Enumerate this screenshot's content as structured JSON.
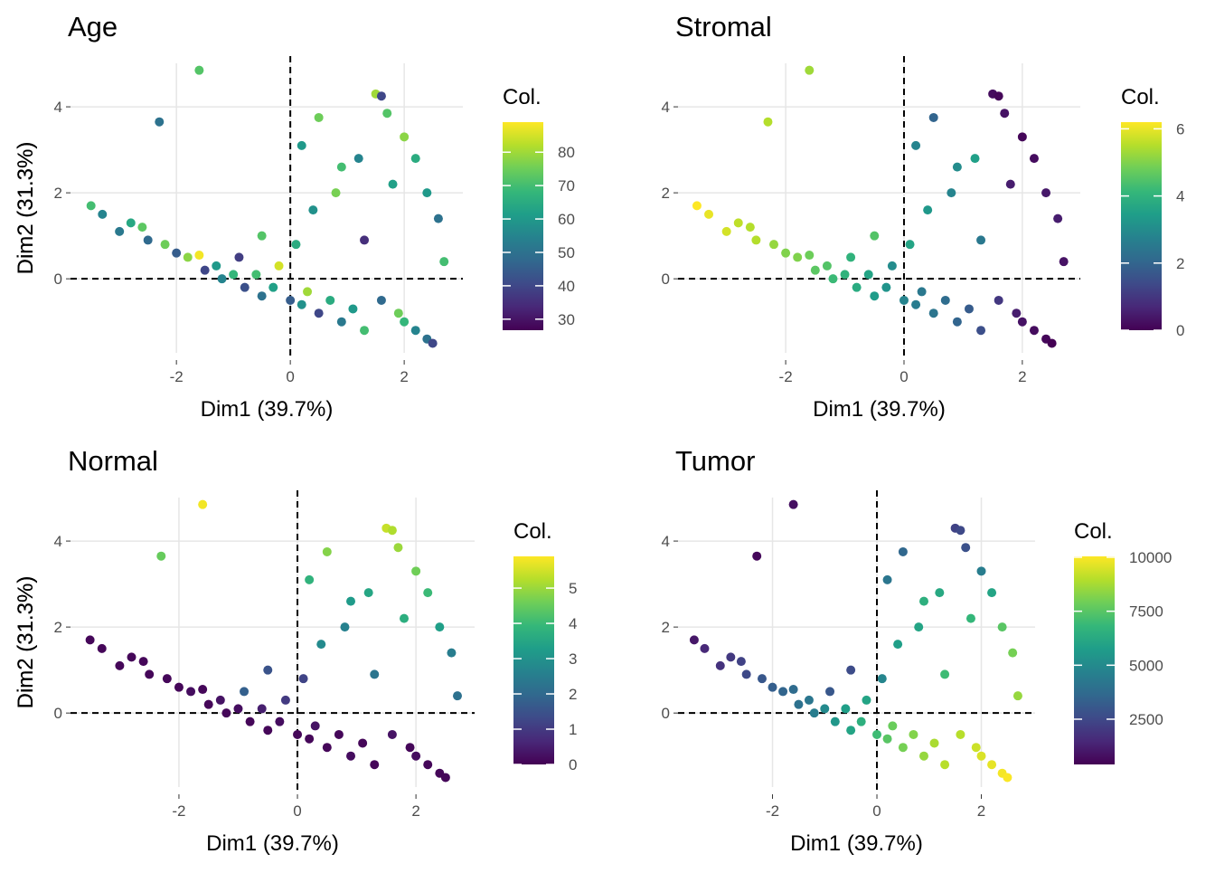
{
  "chart_data": [
    {
      "type": "scatter",
      "title": "Age",
      "x_label": "Dim1 (39.7%)",
      "y_label": "Dim2 (31.3%)",
      "color_label": "Col.",
      "colormap": "viridis",
      "ref_lines": {
        "x": 0,
        "y": 0
      },
      "xlim": [
        -3.86,
        3.03
      ],
      "ylim": [
        -1.89,
        5.18
      ],
      "xticks": [
        -2,
        0,
        2
      ],
      "yticks": [
        0,
        2,
        4
      ],
      "clim": [
        26.7,
        89
      ],
      "cticks": [
        30,
        40,
        50,
        60,
        70,
        80
      ],
      "x": [
        -1.6,
        -2.3,
        -3.5,
        -3.3,
        -3.0,
        -2.8,
        -2.6,
        -2.5,
        -2.2,
        -2.0,
        -1.8,
        -1.6,
        -1.5,
        -1.3,
        -1.2,
        -1.0,
        -0.8,
        -0.6,
        -0.5,
        -0.3,
        -0.2,
        0.0,
        0.2,
        0.3,
        0.5,
        0.7,
        0.9,
        1.1,
        1.3,
        1.6,
        1.9,
        2.0,
        2.2,
        2.4,
        2.5,
        -0.5,
        0.2,
        0.5,
        0.9,
        1.2,
        1.5,
        1.6,
        1.7,
        2.0,
        2.2,
        2.4,
        2.6,
        2.7,
        0.4,
        1.3,
        0.1,
        1.8,
        -0.9,
        0.8
      ],
      "y": [
        4.85,
        3.65,
        1.7,
        1.5,
        1.1,
        1.3,
        1.2,
        0.9,
        0.8,
        0.6,
        0.5,
        0.55,
        0.2,
        0.3,
        0.0,
        0.1,
        -0.2,
        0.1,
        -0.4,
        -0.2,
        0.3,
        -0.5,
        -0.6,
        -0.3,
        -0.8,
        -0.5,
        -1.0,
        -0.7,
        -1.2,
        -0.5,
        -0.8,
        -1.0,
        -1.2,
        -1.4,
        -1.5,
        1.0,
        3.1,
        3.75,
        2.6,
        2.8,
        4.3,
        4.25,
        3.85,
        3.3,
        2.8,
        2.0,
        1.4,
        0.4,
        1.6,
        0.9,
        0.8,
        2.2,
        0.5,
        2.0
      ],
      "color_values": [
        72,
        50,
        70,
        55,
        52,
        64,
        73,
        48,
        75,
        45,
        78,
        88,
        40,
        60,
        55,
        68,
        42,
        70,
        50,
        62,
        85,
        45,
        58,
        80,
        40,
        65,
        52,
        60,
        70,
        48,
        75,
        68,
        55,
        50,
        40,
        72,
        60,
        75,
        70,
        55,
        80,
        40,
        72,
        78,
        65,
        60,
        50,
        70,
        58,
        35,
        65,
        62,
        38,
        76
      ]
    },
    {
      "type": "scatter",
      "title": "Stromal",
      "x_label": "Dim1 (39.7%)",
      "y_label": "Dim2 (31.3%)",
      "color_label": "Col.",
      "colormap": "viridis",
      "ref_lines": {
        "x": 0,
        "y": 0
      },
      "xlim": [
        -3.82,
        2.98
      ],
      "ylim": [
        -1.89,
        5.18
      ],
      "xticks": [
        -2,
        0,
        2
      ],
      "yticks": [
        0,
        2,
        4
      ],
      "clim": [
        0,
        6.2
      ],
      "cticks": [
        0,
        2,
        4,
        6
      ],
      "x": [
        -1.6,
        -2.3,
        -3.5,
        -3.3,
        -3.0,
        -2.8,
        -2.6,
        -2.5,
        -2.2,
        -2.0,
        -1.8,
        -1.6,
        -1.5,
        -1.3,
        -1.2,
        -1.0,
        -0.8,
        -0.6,
        -0.5,
        -0.3,
        -0.2,
        0.0,
        0.2,
        0.3,
        0.5,
        0.7,
        0.9,
        1.1,
        1.3,
        1.6,
        1.9,
        2.0,
        2.2,
        2.4,
        2.5,
        -0.5,
        0.2,
        0.5,
        0.9,
        1.2,
        1.5,
        1.6,
        1.7,
        2.0,
        2.2,
        2.4,
        2.6,
        2.7,
        0.4,
        1.3,
        0.1,
        1.8,
        -0.9,
        0.8
      ],
      "y": [
        4.85,
        3.65,
        1.7,
        1.5,
        1.1,
        1.3,
        1.2,
        0.9,
        0.8,
        0.6,
        0.5,
        0.55,
        0.2,
        0.3,
        0.0,
        0.1,
        -0.2,
        0.1,
        -0.4,
        -0.2,
        0.3,
        -0.5,
        -0.6,
        -0.3,
        -0.8,
        -0.5,
        -1.0,
        -0.7,
        -1.2,
        -0.5,
        -0.8,
        -1.0,
        -1.2,
        -1.4,
        -1.5,
        1.0,
        3.1,
        3.75,
        2.6,
        2.8,
        4.3,
        4.25,
        3.85,
        3.3,
        2.8,
        2.0,
        1.4,
        0.4,
        1.6,
        0.9,
        0.8,
        2.2,
        0.5,
        2.0
      ],
      "color_values": [
        5.3,
        5.5,
        6.2,
        6.0,
        5.8,
        5.6,
        5.5,
        5.5,
        5.2,
        5.0,
        5.0,
        4.8,
        4.6,
        4.5,
        4.2,
        4.0,
        3.8,
        3.6,
        3.4,
        3.2,
        3.0,
        2.8,
        2.6,
        2.5,
        2.4,
        2.2,
        2.0,
        1.8,
        1.5,
        1.0,
        0.5,
        0.3,
        0.2,
        0.1,
        0.0,
        4.5,
        2.8,
        2.0,
        3.0,
        3.5,
        0.2,
        0.1,
        0.3,
        0.1,
        0.2,
        0.4,
        0.5,
        0.3,
        3.3,
        2.5,
        3.6,
        0.5,
        4.0,
        2.8
      ]
    },
    {
      "type": "scatter",
      "title": "Normal",
      "x_label": "Dim1 (39.7%)",
      "y_label": "Dim2 (31.3%)",
      "color_label": "Col.",
      "colormap": "viridis",
      "ref_lines": {
        "x": 0,
        "y": 0
      },
      "xlim": [
        -3.83,
        2.99
      ],
      "ylim": [
        -1.89,
        5.18
      ],
      "xticks": [
        -2,
        0,
        2
      ],
      "yticks": [
        0,
        2,
        4
      ],
      "clim": [
        0,
        5.9
      ],
      "cticks": [
        0,
        1,
        2,
        3,
        4,
        5
      ],
      "x": [
        -1.6,
        -2.3,
        -3.5,
        -3.3,
        -3.0,
        -2.8,
        -2.6,
        -2.5,
        -2.2,
        -2.0,
        -1.8,
        -1.6,
        -1.5,
        -1.3,
        -1.2,
        -1.0,
        -0.8,
        -0.6,
        -0.5,
        -0.3,
        -0.2,
        0.0,
        0.2,
        0.3,
        0.5,
        0.7,
        0.9,
        1.1,
        1.3,
        1.6,
        1.9,
        2.0,
        2.2,
        2.4,
        2.5,
        -0.5,
        0.2,
        0.5,
        0.9,
        1.2,
        1.5,
        1.6,
        1.7,
        2.0,
        2.2,
        2.4,
        2.6,
        2.7,
        0.4,
        1.3,
        0.1,
        1.8,
        -0.9,
        0.8
      ],
      "y": [
        4.85,
        3.65,
        1.7,
        1.5,
        1.1,
        1.3,
        1.2,
        0.9,
        0.8,
        0.6,
        0.5,
        0.55,
        0.2,
        0.3,
        0.0,
        0.1,
        -0.2,
        0.1,
        -0.4,
        -0.2,
        0.3,
        -0.5,
        -0.6,
        -0.3,
        -0.8,
        -0.5,
        -1.0,
        -0.7,
        -1.2,
        -0.5,
        -0.8,
        -1.0,
        -1.2,
        -1.4,
        -1.5,
        1.0,
        3.1,
        3.75,
        2.6,
        2.8,
        4.3,
        4.25,
        3.85,
        3.3,
        2.8,
        2.0,
        1.4,
        0.4,
        1.6,
        0.9,
        0.8,
        2.2,
        0.5,
        2.0
      ],
      "color_values": [
        5.8,
        4.5,
        0.1,
        0.1,
        0.1,
        0.1,
        0.1,
        0.1,
        0.1,
        0.1,
        0.2,
        0.1,
        0.1,
        0.3,
        0.1,
        0.2,
        0.1,
        0.5,
        0.1,
        0.2,
        1.0,
        0.1,
        0.1,
        0.3,
        0.1,
        0.1,
        0.2,
        0.1,
        0.1,
        0.3,
        0.1,
        0.2,
        0.1,
        0.1,
        0.1,
        1.5,
        3.8,
        4.8,
        3.2,
        3.5,
        5.4,
        5.2,
        5.0,
        4.6,
        4.0,
        3.3,
        2.5,
        2.2,
        2.8,
        2.3,
        1.2,
        3.7,
        1.8,
        2.6
      ]
    },
    {
      "type": "scatter",
      "title": "Tumor",
      "x_label": "Dim1 (39.7%)",
      "y_label": "Dim2 (31.3%)",
      "color_label": "Col.",
      "colormap": "viridis",
      "ref_lines": {
        "x": 0,
        "y": 0
      },
      "xlim": [
        -3.81,
        3.03
      ],
      "ylim": [
        -1.89,
        5.18
      ],
      "xticks": [
        -2,
        0,
        2
      ],
      "yticks": [
        0,
        2,
        4
      ],
      "clim": [
        405,
        10040
      ],
      "cticks": [
        2500,
        5000,
        7500,
        10000
      ],
      "x": [
        -1.6,
        -2.3,
        -3.5,
        -3.3,
        -3.0,
        -2.8,
        -2.6,
        -2.5,
        -2.2,
        -2.0,
        -1.8,
        -1.6,
        -1.5,
        -1.3,
        -1.2,
        -1.0,
        -0.8,
        -0.6,
        -0.5,
        -0.3,
        -0.2,
        0.0,
        0.2,
        0.3,
        0.5,
        0.7,
        0.9,
        1.1,
        1.3,
        1.6,
        1.9,
        2.0,
        2.2,
        2.4,
        2.5,
        -0.5,
        0.2,
        0.5,
        0.9,
        1.2,
        1.5,
        1.6,
        1.7,
        2.0,
        2.2,
        2.4,
        2.6,
        2.7,
        0.4,
        1.3,
        0.1,
        1.8,
        -0.9,
        0.8
      ],
      "y": [
        4.85,
        3.65,
        1.7,
        1.5,
        1.1,
        1.3,
        1.2,
        0.9,
        0.8,
        0.6,
        0.5,
        0.55,
        0.2,
        0.3,
        0.0,
        0.1,
        -0.2,
        0.1,
        -0.4,
        -0.2,
        0.3,
        -0.5,
        -0.6,
        -0.3,
        -0.8,
        -0.5,
        -1.0,
        -0.7,
        -1.2,
        -0.5,
        -0.8,
        -1.0,
        -1.2,
        -1.4,
        -1.5,
        1.0,
        3.1,
        3.75,
        2.6,
        2.8,
        4.3,
        4.25,
        3.85,
        3.3,
        2.8,
        2.0,
        1.4,
        0.4,
        1.6,
        0.9,
        0.8,
        2.2,
        0.5,
        2.0
      ],
      "color_values": [
        800,
        600,
        1000,
        1500,
        1800,
        2000,
        2300,
        2500,
        3000,
        3300,
        3500,
        3800,
        4000,
        4200,
        4500,
        5000,
        5500,
        5800,
        6000,
        6500,
        6000,
        7000,
        7500,
        7800,
        8000,
        8200,
        8500,
        8800,
        9000,
        9000,
        9300,
        9500,
        9700,
        9900,
        10000,
        2600,
        4200,
        3600,
        6500,
        6200,
        2300,
        2500,
        2800,
        4500,
        6000,
        7500,
        8000,
        8500,
        5800,
        7000,
        4800,
        6800,
        3000,
        6000
      ]
    }
  ]
}
